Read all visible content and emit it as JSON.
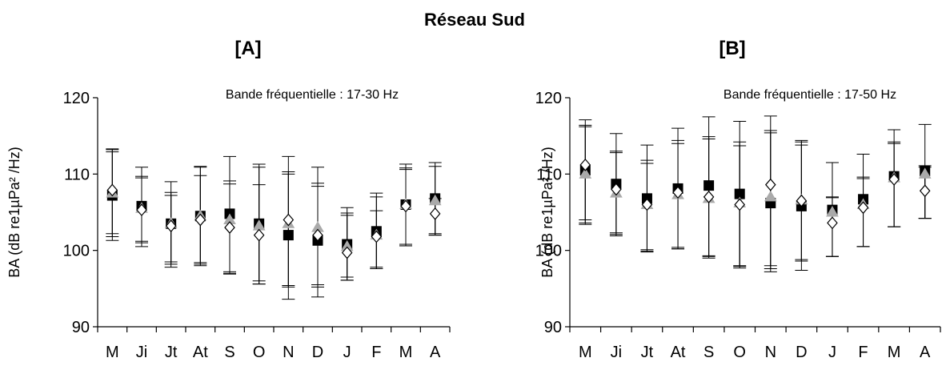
{
  "figure": {
    "title": "Réseau Sud"
  },
  "series_styles": [
    {
      "marker": "square",
      "fill": "#000000",
      "stroke": "#000000"
    },
    {
      "marker": "triangle",
      "fill": "#aaaaaa",
      "stroke": "#aaaaaa"
    },
    {
      "marker": "diamond",
      "fill": "#ffffff",
      "stroke": "#000000"
    }
  ],
  "chart_data": [
    {
      "type": "scatter",
      "title": "[A]",
      "annotation": "Bande fréquentielle : 17-30 Hz",
      "xlabel": "",
      "ylabel": "BA (dB re1µPa² /Hz)",
      "ylim": [
        90,
        120
      ],
      "yticks": [
        90,
        100,
        110,
        120
      ],
      "categories": [
        "M",
        "Ji",
        "Jt",
        "At",
        "S",
        "O",
        "N",
        "D",
        "J",
        "F",
        "M",
        "A"
      ],
      "series": [
        {
          "values": [
            107.2,
            105.8,
            103.5,
            104.5,
            104.8,
            103.5,
            102.0,
            101.3,
            100.8,
            102.5,
            106.0,
            106.8
          ],
          "errors": [
            [
              101.3,
              112.9
            ],
            [
              100.5,
              110.9
            ],
            [
              97.8,
              109.0
            ],
            [
              98.0,
              111.0
            ],
            [
              97.0,
              112.3
            ],
            [
              95.6,
              111.3
            ],
            [
              93.6,
              112.3
            ],
            [
              93.9,
              110.9
            ],
            [
              96.1,
              105.6
            ],
            [
              97.6,
              107.5
            ],
            [
              100.6,
              111.3
            ],
            [
              102.0,
              111.5
            ]
          ]
        },
        {
          "values": [
            107.5,
            105.5,
            103.5,
            104.5,
            104.0,
            103.2,
            103.5,
            103.0,
            100.5,
            102.0,
            106.0,
            106.5
          ],
          "errors": [
            [
              101.8,
              113.2
            ],
            [
              101.2,
              109.7
            ],
            [
              98.5,
              107.6
            ],
            [
              98.4,
              110.9
            ],
            [
              97.2,
              109.1
            ],
            [
              96.0,
              110.9
            ],
            [
              95.2,
              110.3
            ],
            [
              95.5,
              108.8
            ],
            [
              96.5,
              104.9
            ],
            [
              97.8,
              107.0
            ],
            [
              100.8,
              110.8
            ],
            [
              102.2,
              111.0
            ]
          ]
        },
        {
          "values": [
            107.9,
            105.3,
            103.2,
            104.0,
            103.0,
            102.0,
            104.0,
            102.0,
            99.7,
            101.8,
            105.8,
            104.8
          ],
          "errors": [
            [
              102.2,
              113.3
            ],
            [
              101.0,
              109.5
            ],
            [
              98.2,
              107.2
            ],
            [
              98.2,
              109.8
            ],
            [
              96.9,
              108.7
            ],
            [
              95.6,
              108.6
            ],
            [
              95.4,
              110.0
            ],
            [
              95.2,
              108.4
            ],
            [
              96.1,
              104.6
            ],
            [
              97.6,
              105.2
            ],
            [
              100.6,
              110.6
            ],
            [
              102.0,
              106.8
            ]
          ]
        }
      ]
    },
    {
      "type": "scatter",
      "title": "[B]",
      "annotation": "Bande fréquentielle : 17-50 Hz",
      "xlabel": "",
      "ylabel": "BA (dB re1µPa² /Hz)",
      "ylim": [
        90,
        120
      ],
      "yticks": [
        90,
        100,
        110,
        120
      ],
      "categories": [
        "M",
        "Ji",
        "Jt",
        "At",
        "S",
        "O",
        "N",
        "D",
        "J",
        "F",
        "M",
        "A"
      ],
      "series": [
        {
          "values": [
            110.5,
            108.7,
            106.8,
            108.1,
            108.5,
            107.4,
            106.2,
            105.8,
            105.3,
            106.7,
            109.7,
            110.4
          ],
          "errors": [
            [
              103.6,
              117.1
            ],
            [
              101.9,
              115.3
            ],
            [
              99.8,
              113.8
            ],
            [
              100.2,
              116.0
            ],
            [
              99.0,
              117.5
            ],
            [
              97.7,
              116.9
            ],
            [
              97.2,
              117.6
            ],
            [
              97.4,
              114.4
            ],
            [
              99.2,
              111.5
            ],
            [
              100.5,
              112.6
            ],
            [
              103.1,
              115.8
            ],
            [
              104.2,
              116.5
            ]
          ]
        },
        {
          "values": [
            110.0,
            107.5,
            106.0,
            107.3,
            106.8,
            106.2,
            107.0,
            106.6,
            105.0,
            106.0,
            109.5,
            110.0
          ],
          "errors": [
            [
              104.0,
              116.4
            ],
            [
              102.3,
              113.0
            ],
            [
              100.1,
              111.8
            ],
            [
              100.4,
              114.4
            ],
            [
              99.3,
              114.9
            ],
            [
              98.0,
              114.2
            ],
            [
              98.0,
              115.7
            ],
            [
              98.8,
              114.2
            ],
            [
              99.2,
              107.0
            ],
            [
              100.5,
              109.6
            ],
            [
              103.1,
              114.2
            ],
            [
              104.2,
              111.1
            ]
          ]
        },
        {
          "values": [
            111.2,
            108.0,
            106.0,
            107.6,
            107.0,
            106.0,
            108.6,
            106.5,
            103.6,
            105.6,
            109.3,
            107.8
          ],
          "errors": [
            [
              103.4,
              116.2
            ],
            [
              102.1,
              112.8
            ],
            [
              99.9,
              111.4
            ],
            [
              100.2,
              114.0
            ],
            [
              99.2,
              114.6
            ],
            [
              97.9,
              113.7
            ],
            [
              97.6,
              115.4
            ],
            [
              98.6,
              113.8
            ],
            [
              99.2,
              106.9
            ],
            [
              100.5,
              109.4
            ],
            [
              103.1,
              114.0
            ],
            [
              104.2,
              110.9
            ]
          ]
        }
      ]
    }
  ]
}
